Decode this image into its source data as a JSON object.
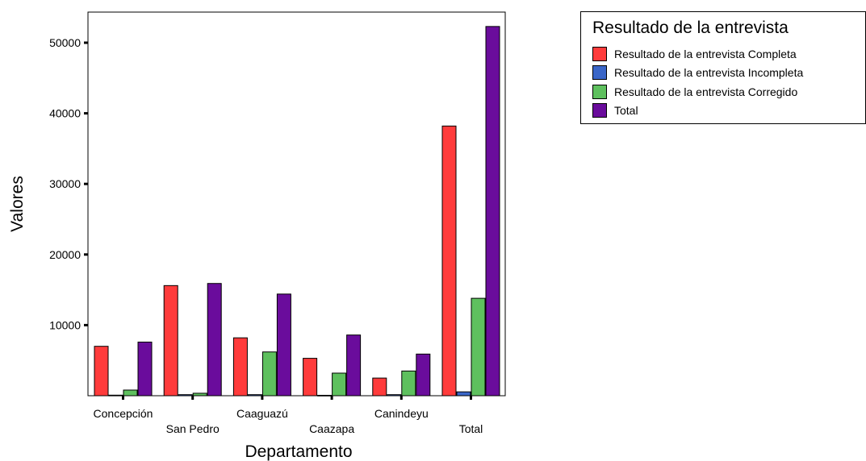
{
  "chart_data": {
    "type": "bar",
    "xlabel": "Departamento",
    "ylabel": "Valores",
    "categories": [
      "Concepción",
      "San Pedro",
      "Caaguazú",
      "Caazapa",
      "Canindeyu",
      "Total"
    ],
    "yticks": [
      "10000",
      "20000",
      "30000",
      "40000",
      "50000"
    ],
    "ylim": [
      0,
      54500
    ],
    "grid": false,
    "legend_position": "top-right",
    "series": [
      {
        "name": "Resultado de la entrevista Completa",
        "color": "#ff3b3b",
        "values": [
          7000,
          15600,
          8200,
          5300,
          2500,
          38200
        ]
      },
      {
        "name": "Resultado de la entrevista Incompleta",
        "color": "#3a66c8",
        "values": [
          80,
          150,
          150,
          60,
          150,
          550
        ]
      },
      {
        "name": "Resultado de la entrevista Corregido",
        "color": "#5ec05e",
        "values": [
          800,
          350,
          6200,
          3200,
          3500,
          13800
        ]
      },
      {
        "name": "Total",
        "color": "#6a0c9c",
        "values": [
          7600,
          15900,
          14400,
          8600,
          5900,
          52300
        ]
      }
    ],
    "legend_title": "Resultado de la entrevista"
  }
}
